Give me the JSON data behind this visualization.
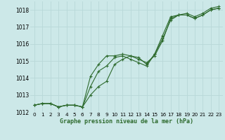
{
  "title": "Graphe pression niveau de la mer (hPa)",
  "background_color": "#cce8e8",
  "grid_color": "#b8d8d8",
  "line_color": "#2d6a2d",
  "ylim": [
    1012,
    1018.5
  ],
  "xlim": [
    -0.5,
    23.5
  ],
  "yticks": [
    1012,
    1013,
    1014,
    1015,
    1016,
    1017,
    1018
  ],
  "xticks": [
    0,
    1,
    2,
    3,
    4,
    5,
    6,
    7,
    8,
    9,
    10,
    11,
    12,
    13,
    14,
    15,
    16,
    17,
    18,
    19,
    20,
    21,
    22,
    23
  ],
  "series": [
    [
      1012.4,
      1012.5,
      1012.5,
      1012.3,
      1012.4,
      1012.4,
      1012.3,
      1013.5,
      1014.4,
      1014.7,
      1015.2,
      1015.3,
      1015.1,
      1014.9,
      1014.7,
      1015.4,
      1016.3,
      1017.4,
      1017.7,
      1017.7,
      1017.5,
      1017.7,
      1018.0,
      1018.1
    ],
    [
      1012.4,
      1012.5,
      1012.5,
      1012.3,
      1012.4,
      1012.4,
      1012.3,
      1014.1,
      1014.8,
      1015.3,
      1015.3,
      1015.4,
      1015.3,
      1015.1,
      1014.9,
      1015.3,
      1016.2,
      1017.5,
      1017.7,
      1017.7,
      1017.5,
      1017.7,
      1018.0,
      1018.1
    ],
    [
      1012.4,
      1012.5,
      1012.5,
      1012.3,
      1012.4,
      1012.4,
      1012.3,
      1013.0,
      1013.5,
      1013.8,
      1014.8,
      1015.1,
      1015.3,
      1015.2,
      1014.8,
      1015.4,
      1016.5,
      1017.6,
      1017.7,
      1017.8,
      1017.6,
      1017.8,
      1018.1,
      1018.2
    ]
  ]
}
